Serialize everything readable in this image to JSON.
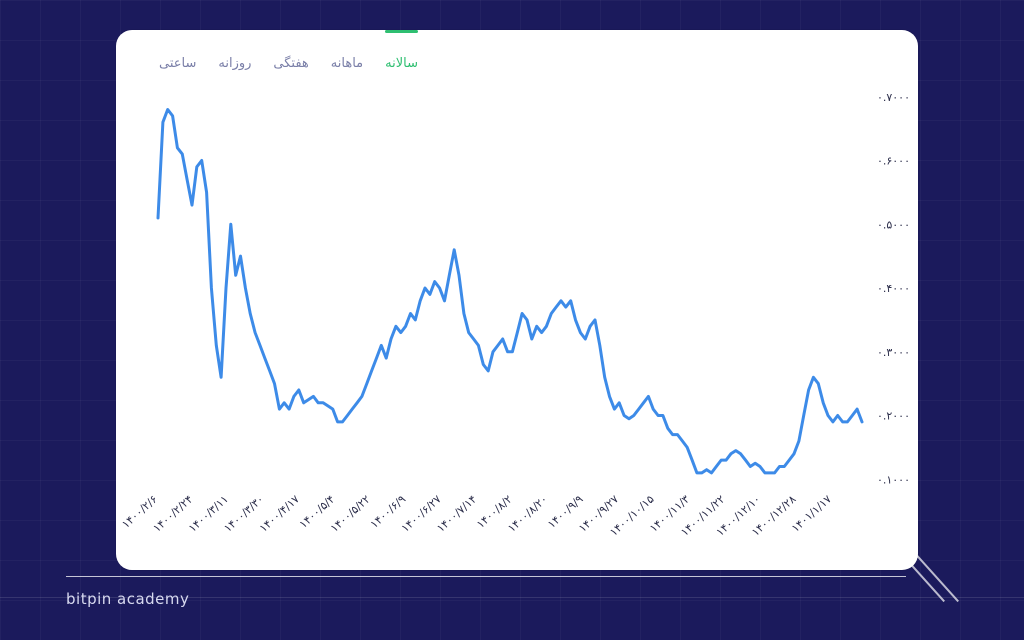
{
  "brand": "bitpin academy",
  "tabs": [
    {
      "label": "ساعتی",
      "active": false
    },
    {
      "label": "روزانه",
      "active": false
    },
    {
      "label": "هفتگی",
      "active": false
    },
    {
      "label": "ماهانه",
      "active": false
    },
    {
      "label": "سالانه",
      "active": true
    }
  ],
  "colors": {
    "background": "#1b1a5c",
    "line": "#3d8be8",
    "active_tab": "#2fbf71",
    "tab": "#7a7fa8"
  },
  "chart_data": {
    "type": "line",
    "title": "",
    "xlabel": "",
    "ylabel": "",
    "ylim": [
      0.08,
      0.72
    ],
    "grid": false,
    "y_ticks": [
      {
        "value": 0.1,
        "label": "۰.۱۰۰۰"
      },
      {
        "value": 0.2,
        "label": "۰.۲۰۰۰"
      },
      {
        "value": 0.3,
        "label": "۰.۳۰۰۰"
      },
      {
        "value": 0.4,
        "label": "۰.۴۰۰۰"
      },
      {
        "value": 0.5,
        "label": "۰.۵۰۰۰"
      },
      {
        "value": 0.6,
        "label": "۰.۶۰۰۰"
      },
      {
        "value": 0.7,
        "label": "۰.۷۰۰۰"
      }
    ],
    "x_ticks": [
      "۱۴۰۰/۲/۶",
      "۱۴۰۰/۲/۲۴",
      "۱۴۰۰/۳/۱۱",
      "۱۴۰۰/۳/۳۰",
      "۱۴۰۰/۴/۱۷",
      "۱۴۰۰/۵/۴",
      "۱۴۰۰/۵/۲۲",
      "۱۴۰۰/۶/۹",
      "۱۴۰۰/۶/۲۷",
      "۱۴۰۰/۷/۱۴",
      "۱۴۰۰/۸/۲",
      "۱۴۰۰/۸/۲۰",
      "۱۴۰۰/۹/۹",
      "۱۴۰۰/۹/۲۷",
      "۱۴۰۰/۱۰/۱۵",
      "۱۴۰۰/۱۱/۳",
      "۱۴۰۰/۱۱/۲۲",
      "۱۴۰۰/۱۲/۱۰",
      "۱۴۰۰/۱۲/۲۸",
      "۱۴۰۱/۱/۱۷"
    ],
    "values": [
      0.51,
      0.66,
      0.68,
      0.67,
      0.62,
      0.61,
      0.57,
      0.53,
      0.59,
      0.6,
      0.55,
      0.4,
      0.31,
      0.26,
      0.4,
      0.5,
      0.42,
      0.45,
      0.4,
      0.36,
      0.33,
      0.31,
      0.29,
      0.27,
      0.25,
      0.21,
      0.22,
      0.21,
      0.23,
      0.24,
      0.22,
      0.225,
      0.23,
      0.22,
      0.22,
      0.215,
      0.21,
      0.19,
      0.19,
      0.2,
      0.21,
      0.22,
      0.23,
      0.25,
      0.27,
      0.29,
      0.31,
      0.29,
      0.32,
      0.34,
      0.33,
      0.34,
      0.36,
      0.35,
      0.38,
      0.4,
      0.39,
      0.41,
      0.4,
      0.38,
      0.42,
      0.46,
      0.42,
      0.36,
      0.33,
      0.32,
      0.31,
      0.28,
      0.27,
      0.3,
      0.31,
      0.32,
      0.3,
      0.3,
      0.33,
      0.36,
      0.35,
      0.32,
      0.34,
      0.33,
      0.34,
      0.36,
      0.37,
      0.38,
      0.37,
      0.38,
      0.35,
      0.33,
      0.32,
      0.34,
      0.35,
      0.31,
      0.26,
      0.23,
      0.21,
      0.22,
      0.2,
      0.195,
      0.2,
      0.21,
      0.22,
      0.23,
      0.21,
      0.2,
      0.2,
      0.18,
      0.17,
      0.17,
      0.16,
      0.15,
      0.13,
      0.11,
      0.11,
      0.115,
      0.11,
      0.12,
      0.13,
      0.13,
      0.14,
      0.145,
      0.14,
      0.13,
      0.12,
      0.125,
      0.12,
      0.11,
      0.11,
      0.11,
      0.12,
      0.12,
      0.13,
      0.14,
      0.16,
      0.2,
      0.24,
      0.26,
      0.25,
      0.22,
      0.2,
      0.19,
      0.2,
      0.19,
      0.19,
      0.2,
      0.21,
      0.19
    ]
  }
}
